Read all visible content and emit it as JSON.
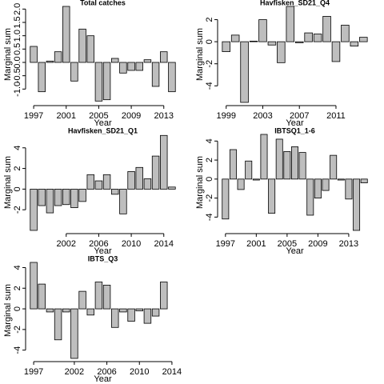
{
  "chart_data": [
    {
      "type": "bar",
      "title": "Total catches",
      "xlabel": "Year",
      "ylabel": "Marginal sum",
      "color": "#bebebe",
      "x": [
        1997,
        1998,
        1999,
        2000,
        2001,
        2002,
        2003,
        2004,
        2005,
        2006,
        2007,
        2008,
        2009,
        2010,
        2011,
        2012,
        2013,
        2014
      ],
      "values": [
        0.6,
        -1.1,
        0.05,
        0.4,
        2.1,
        -0.7,
        1.25,
        1.0,
        -1.45,
        -1.4,
        0.15,
        -0.4,
        -0.3,
        -0.3,
        0.1,
        -0.9,
        0.4,
        -1.1
      ],
      "xlim": [
        1996.5,
        2014.5
      ],
      "xticks": [
        1997,
        2001,
        2005,
        2009,
        2013
      ],
      "ylim": [
        -1.5,
        2.1
      ],
      "yticks": [
        {
          "value": -1,
          "label": "-1.0"
        },
        {
          "value": -0.5,
          "label": "-0.5"
        },
        {
          "value": 0,
          "label": "0.0"
        },
        0.5,
        {
          "value": 1,
          "label": "1.0"
        },
        1.5,
        {
          "value": 2,
          "label": "2.0"
        }
      ]
    },
    {
      "type": "bar",
      "title": "Havfisken_SD21_Q4",
      "xlabel": "Year",
      "ylabel": "Marginal sum",
      "color": "#bebebe",
      "x": [
        1999,
        2000,
        2001,
        2002,
        2003,
        2004,
        2005,
        2006,
        2007,
        2008,
        2009,
        2010,
        2011,
        2012,
        2013,
        2014
      ],
      "values": [
        -0.9,
        0.6,
        -5.5,
        0.05,
        2.0,
        -0.3,
        -1.9,
        3.2,
        -0.1,
        0.8,
        0.7,
        2.3,
        -1.8,
        1.5,
        -0.4,
        0.4
      ],
      "xlim": [
        1998.5,
        2014.5
      ],
      "xticks": [
        1999,
        2003,
        2007,
        2011
      ],
      "ylim": [
        -5.5,
        3.2
      ],
      "yticks": [
        -4,
        -2,
        0,
        2
      ]
    },
    {
      "type": "bar",
      "title": "Havfisken_SD21_Q1",
      "xlabel": "Year",
      "ylabel": "Marginal sum",
      "color": "#bebebe",
      "x": [
        1998,
        1999,
        2000,
        2001,
        2002,
        2003,
        2004,
        2005,
        2006,
        2007,
        2008,
        2009,
        2010,
        2011,
        2012,
        2013,
        2014,
        2015
      ],
      "values": [
        -4.0,
        -1.6,
        -2.3,
        -1.6,
        -1.5,
        -1.8,
        -1.2,
        1.4,
        0.8,
        1.4,
        -0.5,
        -2.4,
        1.7,
        2.1,
        1.0,
        3.2,
        5.2,
        0.2
      ],
      "xlim": [
        1997.5,
        2015.5
      ],
      "xticks": [
        2002,
        2006,
        2010,
        2014
      ],
      "ylim": [
        -4.0,
        5.3
      ],
      "yticks": [
        -2,
        0,
        2,
        4
      ]
    },
    {
      "type": "bar",
      "title": "IBTSQ1_1-6",
      "xlabel": "Year",
      "ylabel": "Marginal sum",
      "color": "#bebebe",
      "x": [
        1997,
        1998,
        1999,
        2000,
        2001,
        2002,
        2003,
        2004,
        2005,
        2006,
        2007,
        2008,
        2009,
        2010,
        2011,
        2012,
        2013,
        2014,
        2015
      ],
      "values": [
        -4.2,
        3.1,
        -1.1,
        1.9,
        -0.1,
        4.7,
        -3.6,
        4.2,
        2.9,
        3.4,
        2.8,
        -3.8,
        -2.0,
        -1.2,
        2.5,
        -0.1,
        -2.1,
        -5.4,
        -0.4
      ],
      "xlim": [
        1996.5,
        2015.5
      ],
      "xticks": [
        1997,
        2001,
        2005,
        2009,
        2013
      ],
      "ylim": [
        -5.4,
        4.7
      ],
      "yticks": [
        -4,
        -2,
        0,
        2,
        4
      ]
    },
    {
      "type": "bar",
      "title": "IBTS_Q3",
      "xlabel": "Year",
      "ylabel": "Marginal sum",
      "color": "#bebebe",
      "x": [
        1997,
        1998,
        1999,
        2000,
        2001,
        2002,
        2003,
        2004,
        2005,
        2006,
        2007,
        2008,
        2009,
        2010,
        2011,
        2012,
        2013
      ],
      "values": [
        4.5,
        2.4,
        -0.3,
        -3.0,
        -0.3,
        -4.8,
        1.7,
        -0.6,
        2.6,
        2.3,
        -1.8,
        -0.3,
        -1.2,
        -0.2,
        -1.4,
        -0.7,
        2.6
      ],
      "xlim": [
        1996.5,
        2014.5
      ],
      "xticks": [
        1997,
        2002,
        2006,
        2010,
        2014
      ],
      "ylim": [
        -4.8,
        4.5
      ],
      "yticks": [
        -4,
        -2,
        0,
        2,
        4
      ]
    }
  ]
}
